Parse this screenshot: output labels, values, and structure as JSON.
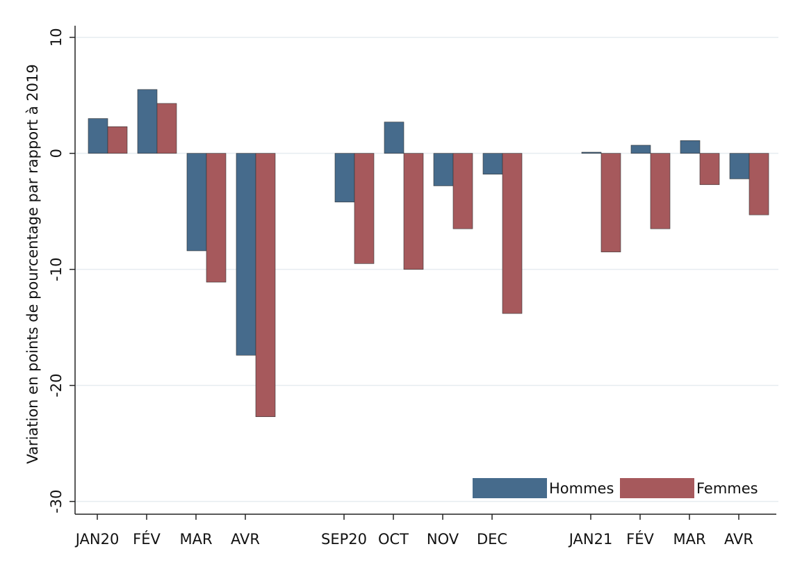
{
  "chart_data": {
    "type": "bar",
    "ylabel": "Variation en points de pourcentage par rapport à 2019",
    "categories": [
      "JAN20",
      "FÉV",
      "MAR",
      "AVR",
      null,
      "SEP20",
      "OCT",
      "NOV",
      "DEC",
      null,
      "JAN21",
      "FÉV",
      "MAR",
      "AVR"
    ],
    "series": [
      {
        "name": "Hommes",
        "color": "#466b8c",
        "values": [
          3.0,
          5.5,
          -8.4,
          -17.4,
          null,
          -4.2,
          2.7,
          -2.8,
          -1.8,
          null,
          0.1,
          0.7,
          1.1,
          -2.2
        ]
      },
      {
        "name": "Femmes",
        "color": "#a6595c",
        "values": [
          2.3,
          4.3,
          -11.1,
          -22.7,
          null,
          -9.5,
          -10.0,
          -6.5,
          -13.8,
          null,
          -8.5,
          -6.5,
          -2.7,
          -5.3
        ]
      }
    ],
    "ylim": [
      -31.1,
      11
    ],
    "yticks": [
      -30,
      -20,
      -10,
      0,
      10
    ],
    "grid": true,
    "legend": "lower right"
  }
}
